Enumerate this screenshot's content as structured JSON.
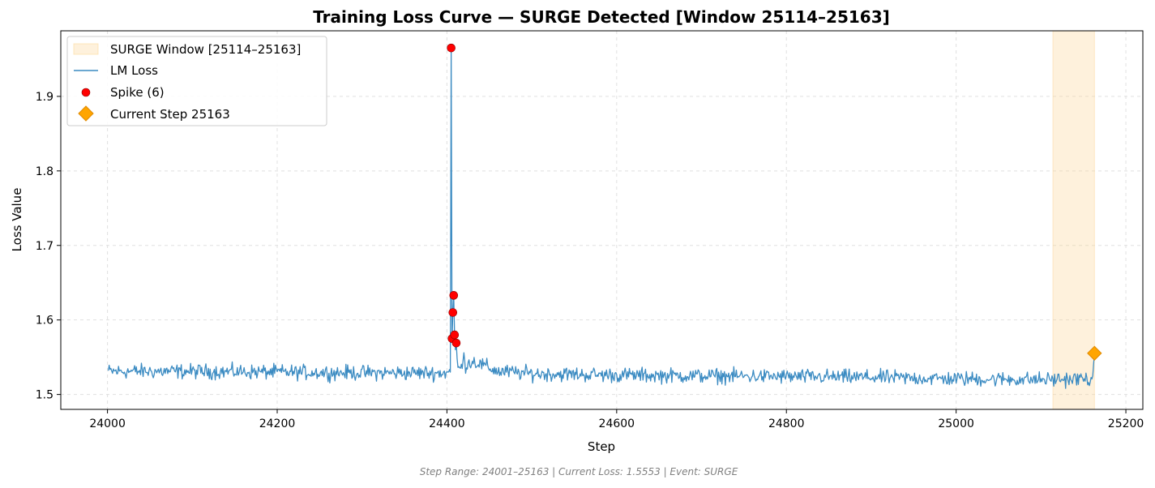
{
  "chart_data": {
    "type": "line",
    "title": "Training Loss Curve — SURGE Detected [Window 25114–25163]",
    "xlabel": "Step",
    "ylabel": "Loss Value",
    "xlim": [
      23945,
      25220
    ],
    "ylim": [
      1.48,
      1.988
    ],
    "xticks": [
      24000,
      24200,
      24400,
      24600,
      24800,
      25000,
      25200
    ],
    "yticks": [
      1.5,
      1.6,
      1.7,
      1.8,
      1.9
    ],
    "xtick_labels": [
      "24000",
      "24200",
      "24400",
      "24600",
      "24800",
      "25000",
      "25200"
    ],
    "ytick_labels": [
      "1.5",
      "1.6",
      "1.7",
      "1.8",
      "1.9"
    ],
    "grid": true,
    "legend_position": "top-left",
    "surge_window": {
      "x_start": 25114,
      "x_end": 25163,
      "color": "#fdd89a"
    },
    "series": [
      {
        "name": "LM Loss",
        "color": "#3b8bc2",
        "x_start": 24001,
        "x_end": 25163,
        "baseline_points": [
          [
            24001,
            1.531
          ],
          [
            24100,
            1.531
          ],
          [
            24200,
            1.53
          ],
          [
            24300,
            1.529
          ],
          [
            24403,
            1.529
          ],
          [
            24430,
            1.545
          ],
          [
            24460,
            1.531
          ],
          [
            24500,
            1.528
          ],
          [
            24600,
            1.526
          ],
          [
            24700,
            1.525
          ],
          [
            24800,
            1.524
          ],
          [
            24900,
            1.523
          ],
          [
            25000,
            1.521
          ],
          [
            25100,
            1.52
          ],
          [
            25160,
            1.521
          ]
        ],
        "noise_amplitude": 0.007,
        "key_points": [
          [
            24404,
            1.53
          ],
          [
            24405,
            1.965
          ],
          [
            24406,
            1.575
          ],
          [
            24407,
            1.61
          ],
          [
            24408,
            1.633
          ],
          [
            24409,
            1.58
          ],
          [
            24410,
            1.56
          ],
          [
            24411,
            1.569
          ],
          [
            24412,
            1.548
          ],
          [
            24420,
            1.556
          ],
          [
            25161,
            1.525
          ],
          [
            25162,
            1.541
          ],
          [
            25163,
            1.555
          ]
        ]
      }
    ],
    "spikes": {
      "name": "Spike (6)",
      "color": "#ff0000",
      "points": [
        [
          24405,
          1.965
        ],
        [
          24406,
          1.575
        ],
        [
          24407,
          1.61
        ],
        [
          24408,
          1.633
        ],
        [
          24409,
          1.58
        ],
        [
          24411,
          1.569
        ]
      ]
    },
    "current": {
      "name": "Current Step 25163",
      "color": "#ffa500",
      "x": 25163,
      "y": 1.5553
    },
    "legend": [
      {
        "label": "SURGE Window [25114–25163]",
        "kind": "patch"
      },
      {
        "label": "LM Loss",
        "kind": "line"
      },
      {
        "label": "Spike (6)",
        "kind": "dot"
      },
      {
        "label": "Current Step 25163",
        "kind": "diamond"
      }
    ],
    "footer": "Step Range: 24001–25163 | Current Loss: 1.5553 | Event: SURGE"
  }
}
